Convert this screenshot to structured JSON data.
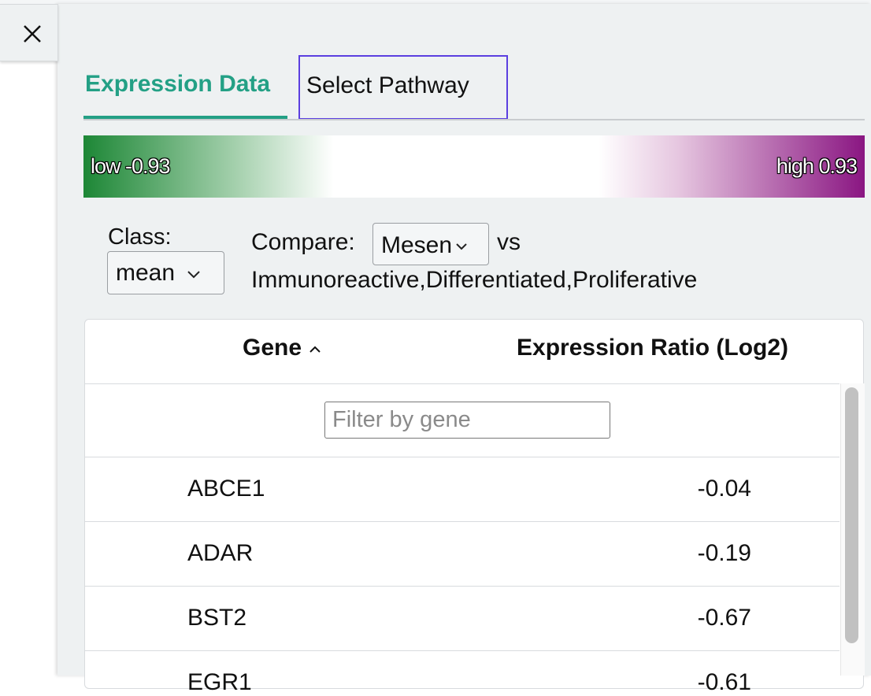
{
  "tabs": [
    "Expression Data",
    "Select Pathway"
  ],
  "legend": {
    "low": "low -0.93",
    "high": "high 0.93"
  },
  "class_label": "Class:",
  "class_value": "mean",
  "compare_label": "Compare:",
  "compare_value": "Mesen",
  "vs": "vs",
  "compare_against": "Immunoreactive,Differentiated,Proliferative",
  "table": {
    "headers": [
      "Gene",
      "Expression Ratio (Log2)"
    ],
    "filter_placeholder": "Filter by gene",
    "rows": [
      [
        "ABCE1",
        -0.04
      ],
      [
        "ADAR",
        -0.19
      ],
      [
        "BST2",
        -0.67
      ],
      [
        "EGR1",
        -0.61
      ]
    ]
  }
}
